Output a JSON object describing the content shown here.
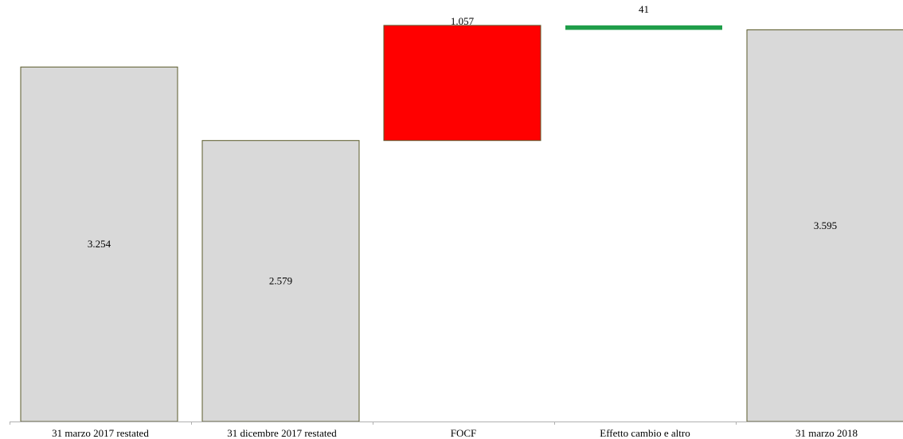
{
  "chart_data": {
    "type": "bar",
    "subtype": "waterfall",
    "title": "",
    "xlabel": "",
    "ylabel": "",
    "ylim": [
      0,
      3650
    ],
    "grid": false,
    "legend": "none",
    "categories": [
      "31 marzo 2017 restated",
      "31 dicembre 2017 restated",
      "FOCF",
      "Effetto cambio e altro",
      "31 marzo 2018"
    ],
    "bars": [
      {
        "category": "31 marzo 2017 restated",
        "kind": "total",
        "value": 3254,
        "label": "3.254"
      },
      {
        "category": "31 dicembre 2017 restated",
        "kind": "total",
        "value": 2579,
        "label": "2.579"
      },
      {
        "category": "FOCF",
        "kind": "increase",
        "value": 1057,
        "label": "1.057"
      },
      {
        "category": "Effetto cambio e altro",
        "kind": "decrease",
        "value": 41,
        "label": "41"
      },
      {
        "category": "31 marzo 2018",
        "kind": "total",
        "value": 3595,
        "label": "3.595"
      }
    ],
    "colors": {
      "total": "#d9d9d9",
      "total_border": "#5a5a2a",
      "increase": "#ff0000",
      "decrease": "#1f9e4a",
      "axis": "#b0b0b0"
    }
  }
}
